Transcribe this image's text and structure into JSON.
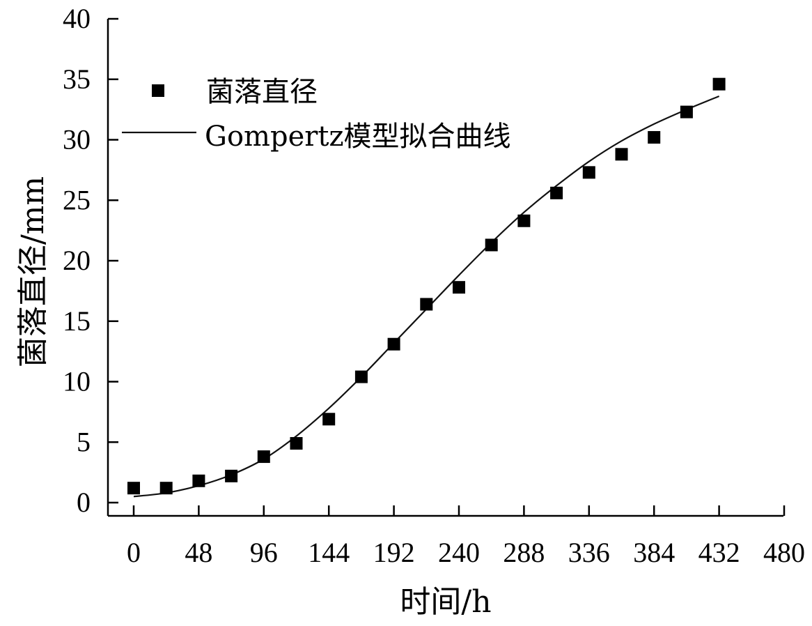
{
  "chart_data": {
    "type": "scatter",
    "title": "",
    "xlabel": "时间/h",
    "ylabel": "菌落直径/mm",
    "xlim": [
      -20,
      480
    ],
    "ylim": [
      -1,
      40
    ],
    "x_ticks": [
      0,
      48,
      96,
      144,
      192,
      240,
      288,
      336,
      384,
      432,
      480
    ],
    "y_ticks": [
      0,
      5,
      10,
      15,
      20,
      25,
      30,
      35,
      40
    ],
    "grid": false,
    "legend_position": "top-left",
    "series": [
      {
        "name": "菌落直径",
        "kind": "points",
        "marker": "square",
        "color": "#000000",
        "x": [
          0,
          24,
          48,
          72,
          96,
          120,
          144,
          168,
          192,
          216,
          240,
          264,
          288,
          312,
          336,
          360,
          384,
          408,
          432
        ],
        "y": [
          1.2,
          1.2,
          1.8,
          2.2,
          3.8,
          4.9,
          6.9,
          10.4,
          13.1,
          16.4,
          17.8,
          21.3,
          23.3,
          25.6,
          27.3,
          28.8,
          30.2,
          32.3,
          34.6
        ]
      },
      {
        "name": "Gompertz模型拟合曲线",
        "kind": "line",
        "color": "#111111",
        "x": [
          0,
          24,
          48,
          72,
          96,
          120,
          144,
          168,
          192,
          216,
          240,
          264,
          288,
          312,
          336,
          360,
          384,
          408,
          432
        ],
        "y": [
          0.5,
          0.8,
          1.4,
          2.3,
          3.6,
          5.5,
          7.8,
          10.4,
          13.2,
          16.0,
          18.8,
          21.5,
          24.0,
          26.2,
          28.2,
          29.9,
          31.3,
          32.5,
          33.6
        ]
      }
    ]
  }
}
